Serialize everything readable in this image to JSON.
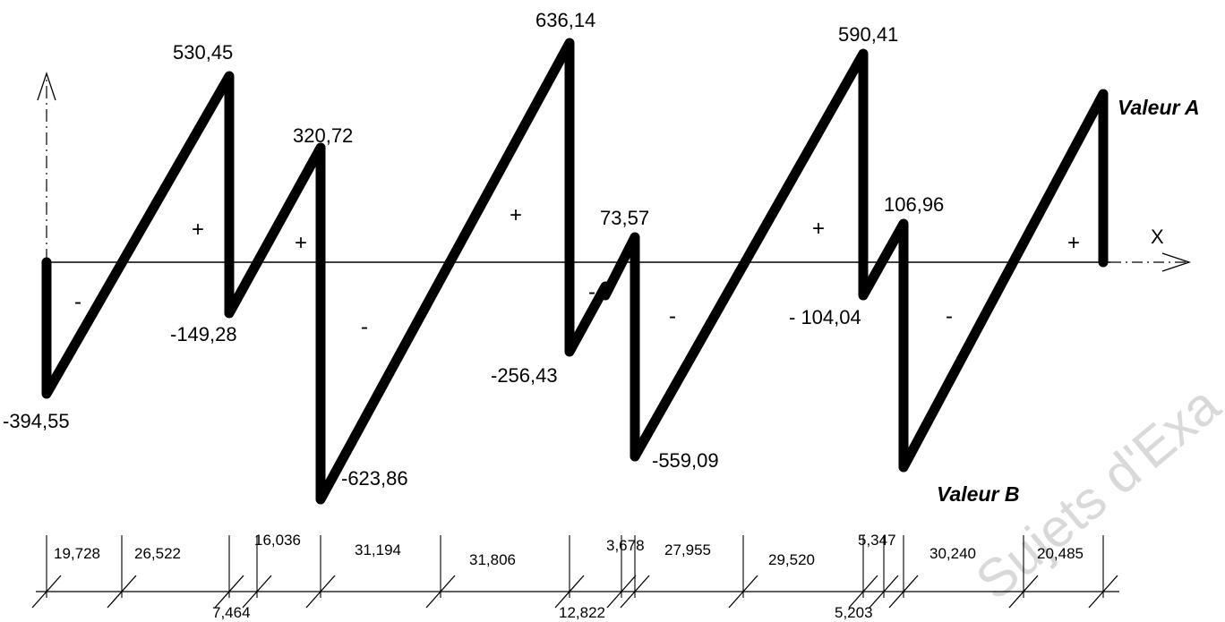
{
  "diagram": {
    "axis_label": "X",
    "watermark": "Sujets d'Exa ... Ré",
    "callouts": {
      "a": "Valeur A",
      "b": "Valeur B"
    },
    "values": {
      "v1": "-394,55",
      "v2": "530,45",
      "v3": "-149,28",
      "v4": "320,72",
      "v5": "-623,86",
      "v6": "636,14",
      "v7": "-256,43",
      "v8": "73,57",
      "v9": "-559,09",
      "v10": "590,41",
      "v11": "- 104,04",
      "v12": "106,96"
    },
    "signs": {
      "s1": "-",
      "s2": "+",
      "s3": "+",
      "s4": "-",
      "s5": "+",
      "s6": "-",
      "s7": "-",
      "s8": "+",
      "s9": "-",
      "s10": "+"
    },
    "dimensions": {
      "d1": "19,728",
      "d2": "26,522",
      "d3": "7,464",
      "d4": "16,036",
      "d5": "31,194",
      "d6": "31,806",
      "d7": "12,822",
      "d8": "3,678",
      "d9": "27,955",
      "d10": "29,520",
      "d11": "5,203",
      "d12": "5,347",
      "d13": "30,240",
      "d14": "20,485"
    }
  }
}
